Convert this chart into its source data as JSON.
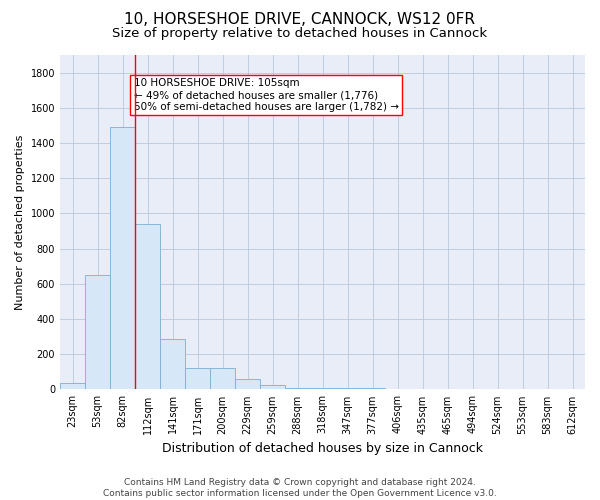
{
  "title": "10, HORSESHOE DRIVE, CANNOCK, WS12 0FR",
  "subtitle": "Size of property relative to detached houses in Cannock",
  "xlabel": "Distribution of detached houses by size in Cannock",
  "ylabel": "Number of detached properties",
  "bar_color": "#d6e8f7",
  "bar_edge_color": "#7bafd4",
  "background_color": "#ffffff",
  "plot_bg_color": "#e8edf8",
  "grid_color": "#b8c8dc",
  "categories": [
    "23sqm",
    "53sqm",
    "82sqm",
    "112sqm",
    "141sqm",
    "171sqm",
    "200sqm",
    "229sqm",
    "259sqm",
    "288sqm",
    "318sqm",
    "347sqm",
    "377sqm",
    "406sqm",
    "435sqm",
    "465sqm",
    "494sqm",
    "524sqm",
    "553sqm",
    "583sqm",
    "612sqm"
  ],
  "values": [
    35,
    650,
    1490,
    940,
    285,
    120,
    120,
    60,
    25,
    10,
    10,
    10,
    10,
    0,
    0,
    0,
    0,
    0,
    0,
    0,
    0
  ],
  "ylim": [
    0,
    1900
  ],
  "yticks": [
    0,
    200,
    400,
    600,
    800,
    1000,
    1200,
    1400,
    1600,
    1800
  ],
  "property_line_x": 2.5,
  "property_line_label": "10 HORSESHOE DRIVE: 105sqm",
  "annotation_line1": "← 49% of detached houses are smaller (1,776)",
  "annotation_line2": "50% of semi-detached houses are larger (1,782) →",
  "footer_line1": "Contains HM Land Registry data © Crown copyright and database right 2024.",
  "footer_line2": "Contains public sector information licensed under the Open Government Licence v3.0.",
  "title_fontsize": 11,
  "subtitle_fontsize": 9.5,
  "xlabel_fontsize": 9,
  "ylabel_fontsize": 8,
  "tick_fontsize": 7,
  "annotation_fontsize": 7.5,
  "footer_fontsize": 6.5
}
